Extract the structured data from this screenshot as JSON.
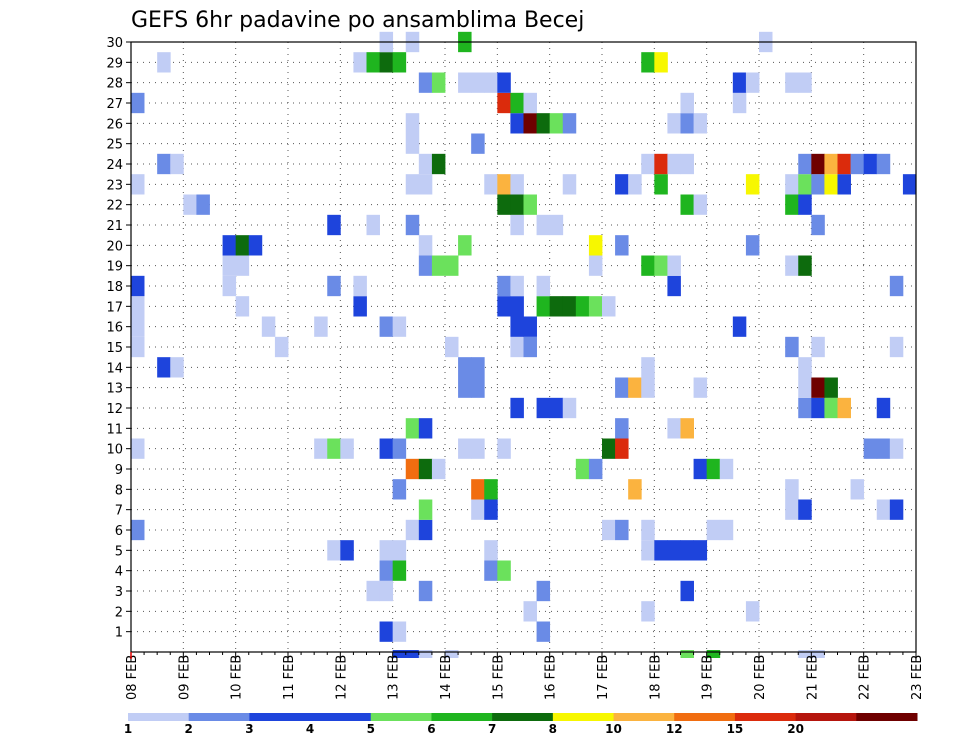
{
  "chart_data": {
    "type": "heatmap",
    "title": "GEFS 6hr padavine po ansamblima Becej",
    "xlabel": "",
    "ylabel": "",
    "y_ticks": [
      "1",
      "2",
      "3",
      "4",
      "5",
      "6",
      "7",
      "8",
      "9",
      "10",
      "11",
      "12",
      "13",
      "14",
      "15",
      "16",
      "17",
      "18",
      "19",
      "20",
      "21",
      "22",
      "23",
      "24",
      "25",
      "26",
      "27",
      "28",
      "29",
      "30"
    ],
    "x_ticks": [
      "08 FEB",
      "09 FEB",
      "10 FEB",
      "11 FEB",
      "12 FEB",
      "13 FEB",
      "14 FEB",
      "15 FEB",
      "16 FEB",
      "17 FEB",
      "18 FEB",
      "19 FEB",
      "20 FEB",
      "21 FEB",
      "22 FEB",
      "23 FEB"
    ],
    "x_range_days": [
      0,
      15
    ],
    "y_range": [
      0,
      30
    ],
    "steps_per_day": 4,
    "grid": true,
    "legend_position": "bottom",
    "legend": {
      "colors": [
        "#c1cdf5",
        "#6a8be6",
        "#1e44dc",
        "#1e44dc",
        "#6be15c",
        "#1fb51f",
        "#0d6b0d",
        "#f7f700",
        "#fbb33f",
        "#f16d10",
        "#db2b0c",
        "#b5150d",
        "#6f0000"
      ],
      "labels": [
        "1",
        "2",
        "3",
        "4",
        "5",
        "6",
        "7",
        "8",
        "10",
        "12",
        "15",
        "20"
      ]
    },
    "category_colors": {
      "a": "#c1cdf5",
      "b": "#6a8be6",
      "c": "#1e44dc",
      "d": "#6be15c",
      "e": "#1fb51f",
      "f": "#0d6b0d",
      "g": "#f7f700",
      "h": "#fbb33f",
      "i": "#f16d10",
      "j": "#db2b0c",
      "k": "#6f0000"
    },
    "category_meaning": {
      "a": "1-2 mm",
      "b": "2-3 mm",
      "c": "3-5 mm",
      "d": "5-6 mm",
      "e": "6-7 mm",
      "f": "7-8 mm",
      "g": "8-10 mm",
      "h": "10-12 mm",
      "i": "12-15 mm",
      "j": "15-20 mm",
      "k": ">20 mm"
    },
    "members": [
      {
        "member": 0,
        "cells": [
          [
            21,
            "c"
          ],
          [
            22,
            "c"
          ],
          [
            23,
            "a"
          ],
          [
            25,
            "a"
          ],
          [
            43,
            "d"
          ],
          [
            45,
            "e"
          ],
          [
            52,
            "a"
          ],
          [
            53,
            "a"
          ]
        ]
      },
      {
        "member": 1,
        "cells": [
          [
            20,
            "c"
          ],
          [
            21,
            "a"
          ],
          [
            32,
            "b"
          ]
        ]
      },
      {
        "member": 2,
        "cells": [
          [
            31,
            "a"
          ],
          [
            40,
            "a"
          ],
          [
            48,
            "a"
          ]
        ]
      },
      {
        "member": 3,
        "cells": [
          [
            19,
            "a"
          ],
          [
            20,
            "a"
          ],
          [
            23,
            "b"
          ],
          [
            32,
            "b"
          ],
          [
            43,
            "c"
          ]
        ]
      },
      {
        "member": 4,
        "cells": [
          [
            20,
            "b"
          ],
          [
            21,
            "e"
          ],
          [
            28,
            "b"
          ],
          [
            29,
            "d"
          ]
        ]
      },
      {
        "member": 5,
        "cells": [
          [
            16,
            "a"
          ],
          [
            17,
            "c"
          ],
          [
            20,
            "a"
          ],
          [
            21,
            "a"
          ],
          [
            28,
            "a"
          ],
          [
            40,
            "a"
          ],
          [
            41,
            "c"
          ],
          [
            42,
            "c"
          ],
          [
            43,
            "c"
          ],
          [
            44,
            "c"
          ]
        ]
      },
      {
        "member": 6,
        "cells": [
          [
            1,
            "b"
          ],
          [
            22,
            "a"
          ],
          [
            23,
            "c"
          ],
          [
            37,
            "a"
          ],
          [
            38,
            "b"
          ],
          [
            40,
            "a"
          ],
          [
            45,
            "a"
          ],
          [
            46,
            "a"
          ]
        ]
      },
      {
        "member": 7,
        "cells": [
          [
            23,
            "d"
          ],
          [
            27,
            "a"
          ],
          [
            28,
            "c"
          ],
          [
            51,
            "a"
          ],
          [
            52,
            "c"
          ],
          [
            58,
            "a"
          ],
          [
            59,
            "c"
          ]
        ]
      },
      {
        "member": 8,
        "cells": [
          [
            21,
            "b"
          ],
          [
            27,
            "i"
          ],
          [
            28,
            "e"
          ],
          [
            39,
            "h"
          ],
          [
            51,
            "a"
          ],
          [
            56,
            "a"
          ]
        ]
      },
      {
        "member": 9,
        "cells": [
          [
            22,
            "i"
          ],
          [
            23,
            "f"
          ],
          [
            24,
            "a"
          ],
          [
            35,
            "d"
          ],
          [
            36,
            "b"
          ],
          [
            44,
            "c"
          ],
          [
            45,
            "e"
          ],
          [
            46,
            "a"
          ]
        ]
      },
      {
        "member": 10,
        "cells": [
          [
            1,
            "a"
          ],
          [
            15,
            "a"
          ],
          [
            16,
            "d"
          ],
          [
            17,
            "a"
          ],
          [
            20,
            "c"
          ],
          [
            21,
            "b"
          ],
          [
            26,
            "a"
          ],
          [
            27,
            "a"
          ],
          [
            29,
            "a"
          ],
          [
            37,
            "f"
          ],
          [
            38,
            "j"
          ],
          [
            57,
            "b"
          ],
          [
            58,
            "b"
          ],
          [
            59,
            "a"
          ]
        ]
      },
      {
        "member": 11,
        "cells": [
          [
            22,
            "d"
          ],
          [
            23,
            "c"
          ],
          [
            38,
            "b"
          ],
          [
            42,
            "a"
          ],
          [
            43,
            "h"
          ]
        ]
      },
      {
        "member": 12,
        "cells": [
          [
            30,
            "c"
          ],
          [
            32,
            "c"
          ],
          [
            33,
            "c"
          ],
          [
            34,
            "a"
          ],
          [
            52,
            "b"
          ],
          [
            53,
            "c"
          ],
          [
            54,
            "d"
          ],
          [
            55,
            "h"
          ],
          [
            58,
            "c"
          ]
        ]
      },
      {
        "member": 13,
        "cells": [
          [
            26,
            "b"
          ],
          [
            27,
            "b"
          ],
          [
            38,
            "b"
          ],
          [
            39,
            "h"
          ],
          [
            40,
            "a"
          ],
          [
            44,
            "a"
          ],
          [
            52,
            "a"
          ],
          [
            53,
            "k"
          ],
          [
            54,
            "f"
          ]
        ]
      },
      {
        "member": 14,
        "cells": [
          [
            3,
            "c"
          ],
          [
            4,
            "a"
          ],
          [
            26,
            "b"
          ],
          [
            27,
            "b"
          ],
          [
            40,
            "a"
          ],
          [
            52,
            "a"
          ]
        ]
      },
      {
        "member": 15,
        "cells": [
          [
            1,
            "a"
          ],
          [
            12,
            "a"
          ],
          [
            25,
            "a"
          ],
          [
            30,
            "a"
          ],
          [
            31,
            "b"
          ],
          [
            51,
            "b"
          ],
          [
            53,
            "a"
          ],
          [
            59,
            "a"
          ]
        ]
      },
      {
        "member": 16,
        "cells": [
          [
            1,
            "a"
          ],
          [
            11,
            "a"
          ],
          [
            15,
            "a"
          ],
          [
            20,
            "b"
          ],
          [
            21,
            "a"
          ],
          [
            30,
            "c"
          ],
          [
            31,
            "c"
          ],
          [
            47,
            "c"
          ]
        ]
      },
      {
        "member": 17,
        "cells": [
          [
            1,
            "a"
          ],
          [
            9,
            "a"
          ],
          [
            18,
            "c"
          ],
          [
            29,
            "c"
          ],
          [
            30,
            "c"
          ],
          [
            32,
            "e"
          ],
          [
            33,
            "f"
          ],
          [
            34,
            "f"
          ],
          [
            35,
            "e"
          ],
          [
            36,
            "d"
          ],
          [
            37,
            "a"
          ]
        ]
      },
      {
        "member": 18,
        "cells": [
          [
            1,
            "c"
          ],
          [
            8,
            "a"
          ],
          [
            16,
            "b"
          ],
          [
            18,
            "a"
          ],
          [
            29,
            "b"
          ],
          [
            30,
            "a"
          ],
          [
            32,
            "a"
          ],
          [
            42,
            "c"
          ],
          [
            59,
            "b"
          ]
        ]
      },
      {
        "member": 19,
        "cells": [
          [
            8,
            "a"
          ],
          [
            9,
            "a"
          ],
          [
            23,
            "b"
          ],
          [
            24,
            "d"
          ],
          [
            25,
            "d"
          ],
          [
            36,
            "a"
          ],
          [
            40,
            "e"
          ],
          [
            41,
            "d"
          ],
          [
            42,
            "a"
          ],
          [
            51,
            "a"
          ],
          [
            52,
            "f"
          ]
        ]
      },
      {
        "member": 20,
        "cells": [
          [
            8,
            "c"
          ],
          [
            9,
            "f"
          ],
          [
            10,
            "c"
          ],
          [
            23,
            "a"
          ],
          [
            26,
            "d"
          ],
          [
            36,
            "g"
          ],
          [
            38,
            "b"
          ],
          [
            48,
            "b"
          ]
        ]
      },
      {
        "member": 21,
        "cells": [
          [
            16,
            "c"
          ],
          [
            19,
            "a"
          ],
          [
            22,
            "b"
          ],
          [
            30,
            "a"
          ],
          [
            32,
            "a"
          ],
          [
            33,
            "a"
          ],
          [
            53,
            "b"
          ]
        ]
      },
      {
        "member": 22,
        "cells": [
          [
            5,
            "a"
          ],
          [
            6,
            "b"
          ],
          [
            29,
            "f"
          ],
          [
            30,
            "f"
          ],
          [
            31,
            "d"
          ],
          [
            43,
            "e"
          ],
          [
            44,
            "a"
          ],
          [
            51,
            "e"
          ],
          [
            52,
            "c"
          ]
        ]
      },
      {
        "member": 23,
        "cells": [
          [
            1,
            "a"
          ],
          [
            22,
            "a"
          ],
          [
            23,
            "a"
          ],
          [
            28,
            "a"
          ],
          [
            29,
            "h"
          ],
          [
            30,
            "a"
          ],
          [
            34,
            "a"
          ],
          [
            38,
            "c"
          ],
          [
            39,
            "a"
          ],
          [
            41,
            "e"
          ],
          [
            48,
            "g"
          ],
          [
            51,
            "a"
          ],
          [
            52,
            "d"
          ],
          [
            53,
            "b"
          ],
          [
            54,
            "g"
          ],
          [
            55,
            "c"
          ],
          [
            60,
            "c"
          ]
        ]
      },
      {
        "member": 24,
        "cells": [
          [
            3,
            "b"
          ],
          [
            4,
            "a"
          ],
          [
            23,
            "a"
          ],
          [
            24,
            "f"
          ],
          [
            40,
            "a"
          ],
          [
            41,
            "j"
          ],
          [
            42,
            "a"
          ],
          [
            43,
            "a"
          ],
          [
            52,
            "b"
          ],
          [
            53,
            "k"
          ],
          [
            54,
            "h"
          ],
          [
            55,
            "j"
          ],
          [
            56,
            "b"
          ],
          [
            57,
            "c"
          ],
          [
            58,
            "b"
          ]
        ]
      },
      {
        "member": 25,
        "cells": [
          [
            22,
            "a"
          ],
          [
            27,
            "b"
          ]
        ]
      },
      {
        "member": 26,
        "cells": [
          [
            22,
            "a"
          ],
          [
            30,
            "c"
          ],
          [
            31,
            "k"
          ],
          [
            32,
            "f"
          ],
          [
            33,
            "d"
          ],
          [
            34,
            "b"
          ],
          [
            42,
            "a"
          ],
          [
            43,
            "b"
          ],
          [
            44,
            "a"
          ]
        ]
      },
      {
        "member": 27,
        "cells": [
          [
            1,
            "b"
          ],
          [
            29,
            "j"
          ],
          [
            30,
            "e"
          ],
          [
            31,
            "a"
          ],
          [
            43,
            "a"
          ],
          [
            47,
            "a"
          ]
        ]
      },
      {
        "member": 28,
        "cells": [
          [
            23,
            "b"
          ],
          [
            24,
            "d"
          ],
          [
            26,
            "a"
          ],
          [
            27,
            "a"
          ],
          [
            28,
            "a"
          ],
          [
            29,
            "c"
          ],
          [
            47,
            "c"
          ],
          [
            48,
            "a"
          ],
          [
            51,
            "a"
          ],
          [
            52,
            "a"
          ]
        ]
      },
      {
        "member": 29,
        "cells": [
          [
            3,
            "a"
          ],
          [
            18,
            "a"
          ],
          [
            19,
            "e"
          ],
          [
            20,
            "f"
          ],
          [
            21,
            "e"
          ],
          [
            40,
            "e"
          ],
          [
            41,
            "g"
          ]
        ]
      },
      {
        "member": 30,
        "cells": [
          [
            20,
            "a"
          ],
          [
            22,
            "a"
          ],
          [
            26,
            "e"
          ],
          [
            49,
            "a"
          ]
        ]
      }
    ]
  }
}
